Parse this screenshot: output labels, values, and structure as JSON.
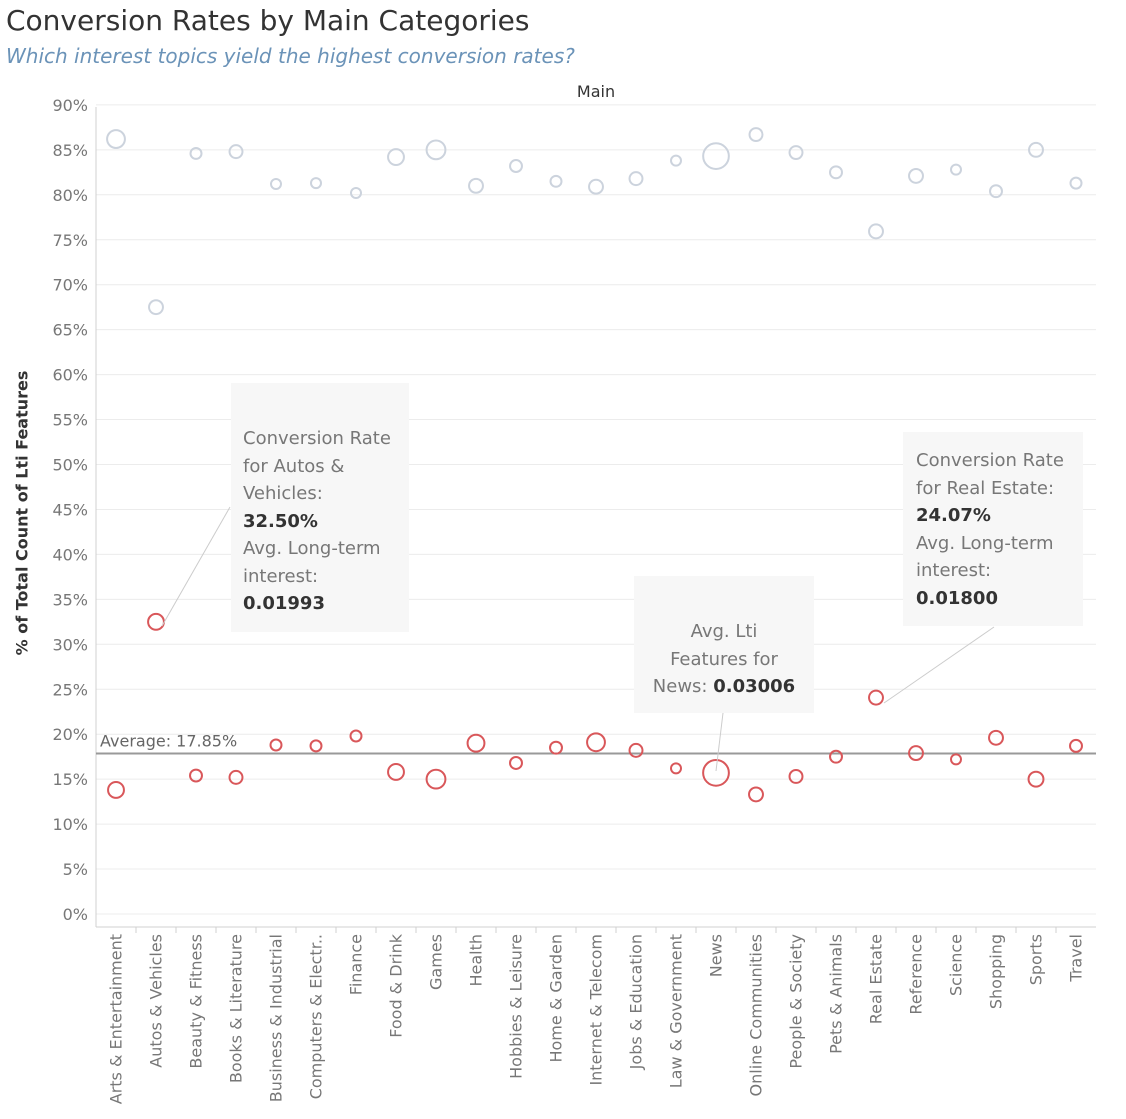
{
  "title": "Conversion Rates by Main Categories",
  "subtitle": "Which interest topics yield the highest conversion rates?",
  "panel_header": "Main",
  "y_axis_label": "% of Total Count of Lti Features",
  "colors": {
    "converted": "#d9575a",
    "not_converted": "#ccd3dd",
    "grid": "#ececec",
    "reference_line": "#999999"
  },
  "reference_line": {
    "label": "Average: 17.85%",
    "value": 17.85
  },
  "annotations": {
    "autos": {
      "line1": "Conversion Rate",
      "line2": "for Autos &",
      "line3": "Vehicles:",
      "value1": "32.50%",
      "line4": "Avg. Long-term",
      "line5": "interest:",
      "value2": "0.01993"
    },
    "realestate": {
      "line1": "Conversion Rate",
      "line2": "for Real Estate:",
      "value1": "24.07%",
      "line3": "Avg. Long-term",
      "line4": "interest:",
      "value2": "0.01800"
    },
    "news": {
      "line1": "Avg. Lti",
      "line2": "Features for",
      "line3": "News:",
      "value1": "0.03006"
    }
  },
  "chart_data": {
    "type": "scatter",
    "xlabel": "",
    "ylabel": "% of Total Count of Lti Features",
    "ylim": [
      0,
      90
    ],
    "yticks": [
      "0%",
      "5%",
      "10%",
      "15%",
      "20%",
      "25%",
      "30%",
      "35%",
      "40%",
      "45%",
      "50%",
      "55%",
      "60%",
      "65%",
      "70%",
      "75%",
      "80%",
      "85%",
      "90%"
    ],
    "grid": true,
    "categories": [
      "Arts & Entertainment",
      "Autos & Vehicles",
      "Beauty & Fitness",
      "Books & Literature",
      "Business & Industrial",
      "Computers & Electr..",
      "Finance",
      "Food & Drink",
      "Games",
      "Health",
      "Hobbies & Leisure",
      "Home & Garden",
      "Internet & Telecom",
      "Jobs & Education",
      "Law & Government",
      "News",
      "Online Communities",
      "People & Society",
      "Pets & Animals",
      "Real Estate",
      "Reference",
      "Science",
      "Shopping",
      "Sports",
      "Travel"
    ],
    "series": [
      {
        "values": [
          13.8,
          32.5,
          15.4,
          15.2,
          18.8,
          18.7,
          19.8,
          15.8,
          15.0,
          19.0,
          16.8,
          18.5,
          19.1,
          18.2,
          16.2,
          15.7,
          13.3,
          15.3,
          17.5,
          24.07,
          17.9,
          17.2,
          19.6,
          15.0,
          18.7
        ],
        "avg_lti": [
          0.02,
          0.01993,
          0.016,
          0.017,
          0.015,
          0.015,
          0.015,
          0.02,
          0.023,
          0.021,
          0.016,
          0.016,
          0.022,
          0.017,
          0.014,
          0.03006,
          0.018,
          0.017,
          0.016,
          0.018,
          0.018,
          0.014,
          0.018,
          0.019,
          0.016
        ]
      },
      {
        "values": [
          86.2,
          67.5,
          84.6,
          84.8,
          81.2,
          81.3,
          80.2,
          84.2,
          85.0,
          81.0,
          83.2,
          81.5,
          80.9,
          81.8,
          83.8,
          84.3,
          86.7,
          84.7,
          82.5,
          75.93,
          82.1,
          82.8,
          80.4,
          85.0,
          81.3
        ],
        "avg_lti": [
          0.022,
          0.018,
          0.015,
          0.017,
          0.014,
          0.014,
          0.014,
          0.02,
          0.023,
          0.018,
          0.016,
          0.015,
          0.018,
          0.017,
          0.014,
          0.03,
          0.017,
          0.017,
          0.016,
          0.018,
          0.018,
          0.014,
          0.016,
          0.018,
          0.015
        ]
      }
    ]
  }
}
